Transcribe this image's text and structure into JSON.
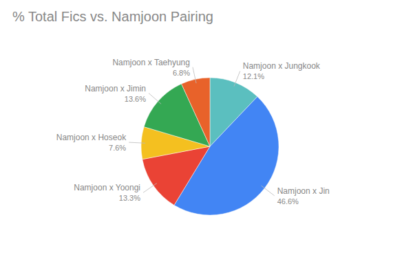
{
  "chart_data": {
    "type": "pie",
    "title": "% Total Fics vs. Namjoon Pairing",
    "categories": [
      "Namjoon x Jungkook",
      "Namjoon x Jin",
      "Namjoon x Yoongi",
      "Namjoon x Hoseok",
      "Namjoon x Jimin",
      "Namjoon x Taehyung"
    ],
    "values": [
      12.1,
      46.6,
      13.3,
      7.6,
      13.6,
      6.8
    ],
    "value_labels": [
      "12.1%",
      "46.6%",
      "13.3%",
      "7.6%",
      "13.6%",
      "6.8%"
    ],
    "colors": [
      "#5BBFBF",
      "#4285F4",
      "#EA4335",
      "#F4C020",
      "#34A853",
      "#E8622A"
    ],
    "data_labels": true
  }
}
